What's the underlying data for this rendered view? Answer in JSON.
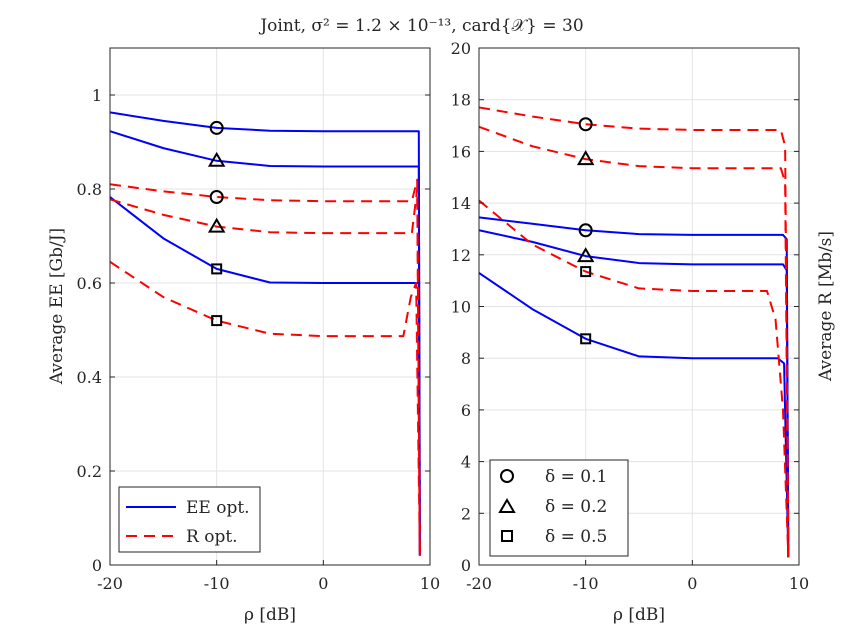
{
  "title": "Joint, σ² = 1.2 × 10⁻¹³, card{𝒳} = 30",
  "colors": {
    "ee": "#0000ff",
    "r": "#ff0000",
    "axis": "#262626",
    "grid": "#e3e3e3"
  },
  "legend_left": [
    {
      "label": "EE opt.",
      "series": "ee"
    },
    {
      "label": "R opt.",
      "series": "r"
    }
  ],
  "legend_right": [
    {
      "label": "δ = 0.1",
      "marker": "circle"
    },
    {
      "label": "δ = 0.2",
      "marker": "triangle"
    },
    {
      "label": "δ = 0.5",
      "marker": "square"
    }
  ],
  "chart_data": [
    {
      "type": "line",
      "xlabel": "ρ [dB]",
      "ylabel": "Average EE [Gb/J]",
      "xlim": [
        -20,
        10
      ],
      "ylim": [
        0,
        1.1
      ],
      "xticks": [
        -20,
        -10,
        0,
        10
      ],
      "xtick_labels": [
        "-20",
        "-10",
        "0",
        "10"
      ],
      "yticks": [
        0,
        0.2,
        0.4,
        0.6,
        0.8,
        1
      ],
      "ytick_labels": [
        "0",
        "0.2",
        "0.4",
        "0.6",
        "0.8",
        "1"
      ],
      "grid": true,
      "series": [
        {
          "name": "EE opt., δ = 0.1",
          "kind": "ee",
          "marker": "circle",
          "marker_at": [
            -10,
            0.93
          ],
          "points": [
            [
              -20,
              0.963
            ],
            [
              -15,
              0.945
            ],
            [
              -10,
              0.93
            ],
            [
              -5,
              0.924
            ],
            [
              0,
              0.923
            ],
            [
              5,
              0.923
            ],
            [
              8.5,
              0.923
            ],
            [
              8.95,
              0.923
            ],
            [
              9.05,
              0.02
            ]
          ]
        },
        {
          "name": "EE opt., δ = 0.2",
          "kind": "ee",
          "marker": "triangle",
          "marker_at": [
            -10,
            0.86
          ],
          "points": [
            [
              -20,
              0.923
            ],
            [
              -15,
              0.887
            ],
            [
              -10,
              0.86
            ],
            [
              -5,
              0.849
            ],
            [
              0,
              0.848
            ],
            [
              5,
              0.848
            ],
            [
              8.5,
              0.848
            ],
            [
              8.95,
              0.848
            ],
            [
              9.05,
              0.02
            ]
          ]
        },
        {
          "name": "EE opt., δ = 0.5",
          "kind": "ee",
          "marker": "square",
          "marker_at": [
            -10,
            0.63
          ],
          "points": [
            [
              -20,
              0.783
            ],
            [
              -15,
              0.695
            ],
            [
              -10,
              0.63
            ],
            [
              -5,
              0.601
            ],
            [
              0,
              0.6
            ],
            [
              5,
              0.6
            ],
            [
              8.5,
              0.6
            ],
            [
              8.95,
              0.6
            ],
            [
              9.05,
              0.02
            ]
          ]
        },
        {
          "name": "R opt., δ = 0.1",
          "kind": "r",
          "marker": "circle",
          "marker_at": [
            -10,
            0.783
          ],
          "points": [
            [
              -20,
              0.81
            ],
            [
              -15,
              0.795
            ],
            [
              -10,
              0.783
            ],
            [
              -5,
              0.776
            ],
            [
              0,
              0.774
            ],
            [
              5,
              0.774
            ],
            [
              8.3,
              0.774
            ],
            [
              8.8,
              0.82
            ],
            [
              9.05,
              0.02
            ]
          ]
        },
        {
          "name": "R opt., δ = 0.2",
          "kind": "r",
          "marker": "triangle",
          "marker_at": [
            -10,
            0.72
          ],
          "points": [
            [
              -20,
              0.778
            ],
            [
              -15,
              0.745
            ],
            [
              -10,
              0.72
            ],
            [
              -5,
              0.708
            ],
            [
              0,
              0.706
            ],
            [
              5,
              0.706
            ],
            [
              8.3,
              0.706
            ],
            [
              8.8,
              0.8
            ],
            [
              9.05,
              0.02
            ]
          ]
        },
        {
          "name": "R opt., δ = 0.5",
          "kind": "r",
          "marker": "square",
          "marker_at": [
            -10,
            0.52
          ],
          "points": [
            [
              -20,
              0.645
            ],
            [
              -15,
              0.57
            ],
            [
              -10,
              0.52
            ],
            [
              -5,
              0.492
            ],
            [
              0,
              0.487
            ],
            [
              5,
              0.487
            ],
            [
              7.5,
              0.487
            ],
            [
              8.2,
              0.57
            ],
            [
              8.7,
              0.6
            ],
            [
              9.05,
              0.02
            ]
          ]
        }
      ]
    },
    {
      "type": "line",
      "xlabel": "ρ [dB]",
      "ylabel": "Average R [Mb/s]",
      "xlim": [
        -20,
        10
      ],
      "ylim": [
        0,
        20
      ],
      "xticks": [
        -20,
        -10,
        0,
        10
      ],
      "xtick_labels": [
        "-20",
        "-10",
        "0",
        "10"
      ],
      "yticks": [
        0,
        2,
        4,
        6,
        8,
        10,
        12,
        14,
        16,
        18,
        20
      ],
      "ytick_labels": [
        "0",
        "2",
        "4",
        "6",
        "8",
        "10",
        "12",
        "14",
        "16",
        "18",
        "20"
      ],
      "grid": true,
      "series": [
        {
          "name": "EE opt., δ = 0.1",
          "kind": "ee",
          "marker": "circle",
          "marker_at": [
            -10,
            12.95
          ],
          "points": [
            [
              -20,
              13.45
            ],
            [
              -15,
              13.2
            ],
            [
              -10,
              12.95
            ],
            [
              -5,
              12.8
            ],
            [
              0,
              12.77
            ],
            [
              5,
              12.77
            ],
            [
              8.5,
              12.77
            ],
            [
              8.85,
              12.6
            ],
            [
              9.0,
              0.3
            ]
          ]
        },
        {
          "name": "EE opt., δ = 0.2",
          "kind": "ee",
          "marker": "triangle",
          "marker_at": [
            -10,
            11.95
          ],
          "points": [
            [
              -20,
              12.95
            ],
            [
              -15,
              12.5
            ],
            [
              -10,
              11.95
            ],
            [
              -5,
              11.68
            ],
            [
              0,
              11.63
            ],
            [
              5,
              11.63
            ],
            [
              8.5,
              11.63
            ],
            [
              8.85,
              11.4
            ],
            [
              9.0,
              0.3
            ]
          ]
        },
        {
          "name": "EE opt., δ = 0.5",
          "kind": "ee",
          "marker": "square",
          "marker_at": [
            -10,
            8.75
          ],
          "points": [
            [
              -20,
              11.3
            ],
            [
              -15,
              9.9
            ],
            [
              -10,
              8.75
            ],
            [
              -5,
              8.07
            ],
            [
              0,
              8.0
            ],
            [
              5,
              8.0
            ],
            [
              8.0,
              8.0
            ],
            [
              8.6,
              7.8
            ],
            [
              9.0,
              0.3
            ]
          ]
        },
        {
          "name": "R opt., δ = 0.1",
          "kind": "r",
          "marker": "circle",
          "marker_at": [
            -10,
            17.05
          ],
          "points": [
            [
              -20,
              17.7
            ],
            [
              -15,
              17.35
            ],
            [
              -10,
              17.05
            ],
            [
              -5,
              16.88
            ],
            [
              0,
              16.83
            ],
            [
              5,
              16.83
            ],
            [
              8.3,
              16.83
            ],
            [
              8.7,
              16.2
            ],
            [
              9.0,
              0.3
            ]
          ]
        },
        {
          "name": "R opt., δ = 0.2",
          "kind": "r",
          "marker": "triangle",
          "marker_at": [
            -10,
            15.7
          ],
          "points": [
            [
              -20,
              16.95
            ],
            [
              -15,
              16.2
            ],
            [
              -10,
              15.7
            ],
            [
              -5,
              15.43
            ],
            [
              0,
              15.35
            ],
            [
              5,
              15.35
            ],
            [
              8.3,
              15.35
            ],
            [
              8.7,
              14.8
            ],
            [
              9.0,
              0.3
            ]
          ]
        },
        {
          "name": "R opt., δ = 0.5",
          "kind": "r",
          "marker": "square",
          "marker_at": [
            -10,
            11.35
          ],
          "points": [
            [
              -20,
              14.1
            ],
            [
              -15,
              12.4
            ],
            [
              -10,
              11.35
            ],
            [
              -5,
              10.7
            ],
            [
              0,
              10.6
            ],
            [
              5,
              10.6
            ],
            [
              7.0,
              10.6
            ],
            [
              7.8,
              9.5
            ],
            [
              8.5,
              6.0
            ],
            [
              9.0,
              0.3
            ]
          ]
        }
      ]
    }
  ]
}
